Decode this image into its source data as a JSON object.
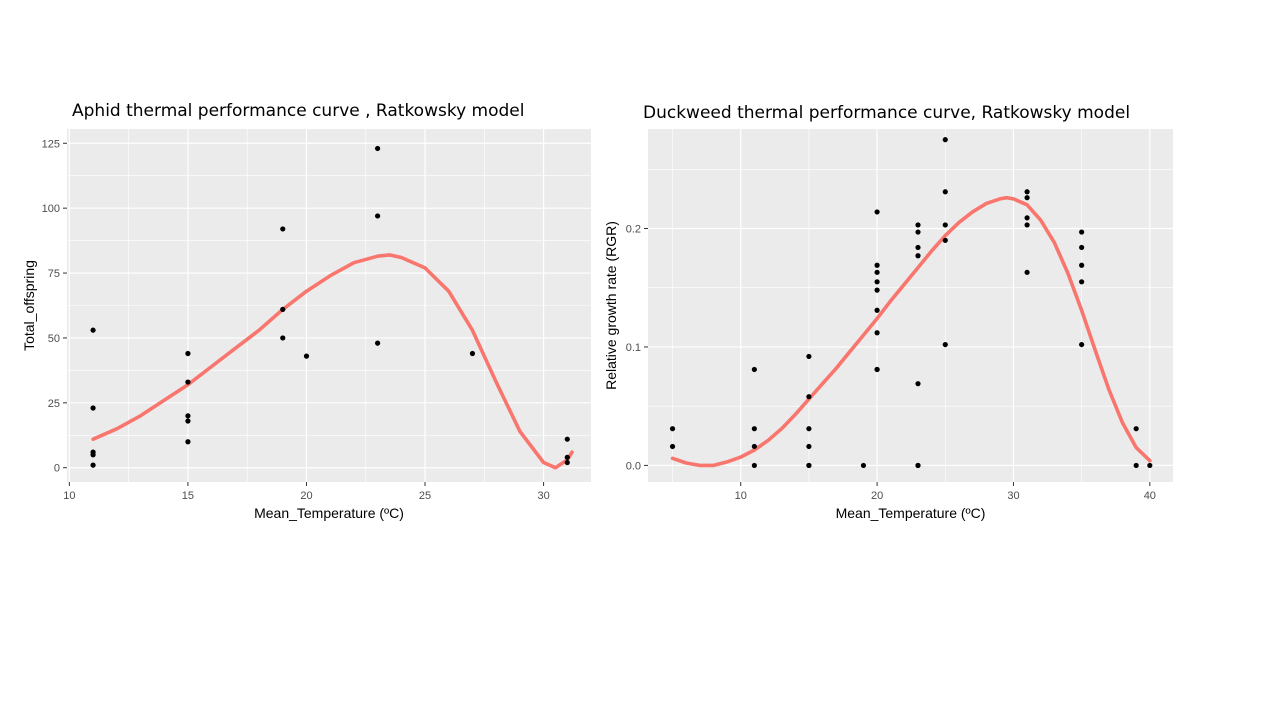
{
  "chart_data": [
    {
      "type": "scatter",
      "title": "Aphid thermal performance curve , Ratkowsky model",
      "xlabel": "Mean_Temperature (ºC)",
      "ylabel": "Total_offspring",
      "xlim": [
        9.9,
        32.0
      ],
      "ylim": [
        -5.5,
        130.5
      ],
      "xticks": [
        10,
        15,
        20,
        25,
        30
      ],
      "yticks": [
        0,
        25,
        50,
        75,
        100,
        125
      ],
      "grid": true,
      "colors": {
        "panel": "#EBEBEB",
        "grid": "#FFFFFF",
        "points": "#000000",
        "curve": "#F8766D"
      },
      "points": {
        "x": [
          11,
          11,
          11,
          11,
          11,
          15,
          15,
          15,
          15,
          15,
          19,
          19,
          19,
          20,
          23,
          23,
          23,
          27,
          31,
          31,
          31
        ],
        "y": [
          53,
          23,
          6,
          5,
          1,
          44,
          33,
          20,
          18,
          10,
          92,
          61,
          50,
          43,
          123,
          97,
          48,
          44,
          11,
          4,
          2
        ]
      },
      "curve": {
        "name": "Ratkowsky model",
        "x": [
          11,
          12,
          13,
          14,
          15,
          16,
          17,
          18,
          19,
          20,
          21,
          22,
          23,
          23.5,
          24,
          25,
          26,
          27,
          28,
          29,
          30,
          30.5,
          31,
          31.2
        ],
        "y": [
          11,
          15,
          20,
          26,
          32,
          39,
          46,
          53,
          61,
          68,
          74,
          79,
          81.5,
          82,
          81,
          77,
          68,
          53,
          33,
          14,
          2,
          0,
          3,
          6
        ]
      }
    },
    {
      "type": "scatter",
      "title": "Duckweed thermal performance curve, Ratkowsky model",
      "xlabel": "Mean_Temperature (ºC)",
      "ylabel": "Relative growth rate (RGR)",
      "xlim": [
        3.2,
        41.7
      ],
      "ylim": [
        -0.014,
        0.284
      ],
      "xticks": [
        10,
        20,
        30,
        40
      ],
      "yticks": [
        0.0,
        0.1,
        0.2
      ],
      "ytick_labels": [
        "0.0",
        "0.1",
        "0.2"
      ],
      "grid": true,
      "colors": {
        "panel": "#EBEBEB",
        "grid": "#FFFFFF",
        "points": "#000000",
        "curve": "#F8766D"
      },
      "points": {
        "x": [
          5,
          5,
          11,
          11,
          11,
          11,
          15,
          15,
          15,
          15,
          15,
          15,
          19,
          20,
          20,
          20,
          20,
          20,
          20,
          20,
          20,
          20,
          23,
          23,
          23,
          23,
          23,
          23,
          23,
          25,
          25,
          25,
          25,
          25,
          31,
          31,
          31,
          31,
          31,
          35,
          35,
          35,
          35,
          35,
          39,
          39,
          40
        ],
        "y": [
          0.031,
          0.016,
          0.081,
          0.031,
          0.016,
          0.0,
          0.092,
          0.058,
          0.031,
          0.016,
          0.0,
          0.0,
          0.0,
          0.214,
          0.169,
          0.163,
          0.155,
          0.148,
          0.131,
          0.112,
          0.081,
          0.081,
          0.203,
          0.197,
          0.184,
          0.177,
          0.069,
          0.0,
          0.0,
          0.275,
          0.231,
          0.203,
          0.19,
          0.102,
          0.231,
          0.226,
          0.209,
          0.203,
          0.163,
          0.197,
          0.184,
          0.169,
          0.155,
          0.102,
          0.031,
          0.0,
          0.0
        ],
        "label_values_note": ""
      },
      "curve": {
        "name": "Ratkowsky model",
        "x": [
          5,
          6,
          7,
          8,
          9,
          10,
          11,
          12,
          13,
          14,
          15,
          16,
          17,
          18,
          19,
          20,
          21,
          22,
          23,
          24,
          25,
          26,
          27,
          28,
          29,
          29.5,
          30,
          31,
          32,
          33,
          34,
          35,
          36,
          37,
          38,
          39,
          40
        ],
        "y": [
          0.006,
          0.002,
          0.0,
          0.0,
          0.003,
          0.007,
          0.013,
          0.021,
          0.031,
          0.043,
          0.056,
          0.069,
          0.082,
          0.096,
          0.11,
          0.124,
          0.139,
          0.153,
          0.167,
          0.181,
          0.194,
          0.205,
          0.214,
          0.221,
          0.225,
          0.226,
          0.225,
          0.22,
          0.207,
          0.188,
          0.162,
          0.131,
          0.097,
          0.064,
          0.036,
          0.015,
          0.004
        ]
      }
    }
  ]
}
